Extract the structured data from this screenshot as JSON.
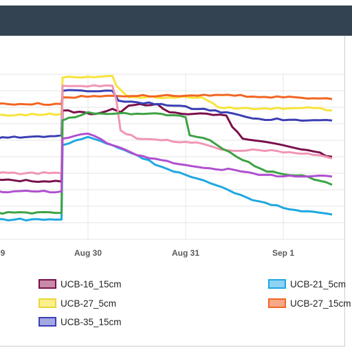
{
  "chart_data": {
    "type": "line",
    "title": "",
    "xlabel": "",
    "ylabel": "",
    "x_ticks": [
      "9",
      "Aug 30",
      "Aug 31",
      "Sep 1"
    ],
    "x_range": [
      "Aug 29 00:00",
      "Sep 1 12:00"
    ],
    "y_range": [
      0,
      10
    ],
    "grid": true,
    "series": [
      {
        "name": "UCB-16_15cm",
        "color": "#7a0f4a",
        "swatch": "#c98aa8",
        "points": [
          [
            "Aug 29 00:00",
            3.6
          ],
          [
            "Aug 29 17:30",
            3.5
          ],
          [
            "Aug 29 17:45",
            7.8
          ],
          [
            "Aug 30 02:00",
            7.6
          ],
          [
            "Aug 30 06:00",
            7.9
          ],
          [
            "Aug 30 08:00",
            7.7
          ],
          [
            "Aug 30 10:00",
            8.1
          ],
          [
            "Aug 30 17:00",
            8.2
          ],
          [
            "Aug 30 20:00",
            7.7
          ],
          [
            "Aug 31 02:00",
            7.6
          ],
          [
            "Aug 31 10:00",
            7.5
          ],
          [
            "Aug 31 11:30",
            6.8
          ],
          [
            "Aug 31 14:00",
            6.1
          ],
          [
            "Aug 31 22:00",
            5.8
          ],
          [
            "Sep 1 06:00",
            5.4
          ],
          [
            "Sep 1 12:00",
            5.0
          ]
        ]
      },
      {
        "name": "UCB-21_5cm",
        "color": "#1ea7e1",
        "swatch": "#8fd3f4",
        "points": [
          [
            "Aug 29 00:00",
            1.2
          ],
          [
            "Aug 29 17:30",
            1.2
          ],
          [
            "Aug 29 17:45",
            5.7
          ],
          [
            "Aug 30 00:00",
            6.2
          ],
          [
            "Aug 30 06:00",
            5.7
          ],
          [
            "Aug 30 12:00",
            5.1
          ],
          [
            "Aug 30 18:00",
            4.4
          ],
          [
            "Aug 31 00:00",
            3.9
          ],
          [
            "Aug 31 06:00",
            3.4
          ],
          [
            "Aug 31 12:00",
            2.8
          ],
          [
            "Aug 31 18:00",
            2.3
          ],
          [
            "Sep 1 00:00",
            1.9
          ],
          [
            "Sep 1 06:00",
            1.7
          ],
          [
            "Sep 1 12:00",
            1.5
          ]
        ]
      },
      {
        "name": "UCB-27_5cm",
        "color": "#f7e43b",
        "swatch": "#fbf08c",
        "points": [
          [
            "Aug 29 00:00",
            7.5
          ],
          [
            "Aug 29 17:30",
            7.6
          ],
          [
            "Aug 29 17:45",
            9.8
          ],
          [
            "Aug 30 06:00",
            9.9
          ],
          [
            "Aug 30 07:00",
            9.3
          ],
          [
            "Aug 30 10:00",
            8.6
          ],
          [
            "Aug 30 20:00",
            8.6
          ],
          [
            "Aug 31 04:00",
            8.6
          ],
          [
            "Aug 31 08:00",
            8.0
          ],
          [
            "Aug 31 18:00",
            7.9
          ],
          [
            "Sep 1 06:00",
            8.0
          ],
          [
            "Sep 1 12:00",
            7.8
          ]
        ]
      },
      {
        "name": "UCB-27_15cm",
        "color": "#f26522",
        "swatch": "#f7a889",
        "points": [
          [
            "Aug 29 00:00",
            8.2
          ],
          [
            "Aug 29 17:30",
            8.2
          ],
          [
            "Aug 29 17:45",
            8.6
          ],
          [
            "Aug 30 06:00",
            8.7
          ],
          [
            "Aug 30 18:00",
            8.7
          ],
          [
            "Aug 31 00:00",
            8.7
          ],
          [
            "Aug 31 12:00",
            8.7
          ],
          [
            "Sep 1 00:00",
            8.6
          ],
          [
            "Sep 1 12:00",
            8.5
          ]
        ]
      },
      {
        "name": "UCB-35_15cm",
        "color": "#3b3fb3",
        "swatch": "#a3a8e3",
        "points": [
          [
            "Aug 29 00:00",
            6.1
          ],
          [
            "Aug 29 17:30",
            6.3
          ],
          [
            "Aug 29 17:45",
            9.0
          ],
          [
            "Aug 30 06:00",
            9.0
          ],
          [
            "Aug 30 07:30",
            8.4
          ],
          [
            "Aug 30 18:00",
            8.2
          ],
          [
            "Aug 31 06:00",
            7.8
          ],
          [
            "Aug 31 10:00",
            7.7
          ],
          [
            "Aug 31 18:00",
            7.3
          ],
          [
            "Sep 1 06:00",
            7.2
          ],
          [
            "Sep 1 12:00",
            7.2
          ]
        ]
      },
      {
        "name": "",
        "color": "#f195b4",
        "points": [
          [
            "Aug 29 00:00",
            4.0
          ],
          [
            "Aug 29 17:30",
            4.0
          ],
          [
            "Aug 29 17:45",
            9.3
          ],
          [
            "Aug 30 06:00",
            9.3
          ],
          [
            "Aug 30 07:00",
            8.4
          ],
          [
            "Aug 30 08:00",
            6.6
          ],
          [
            "Aug 30 12:00",
            6.1
          ],
          [
            "Aug 30 18:00",
            6.0
          ],
          [
            "Aug 31 00:00",
            5.9
          ],
          [
            "Aug 31 04:00",
            5.8
          ],
          [
            "Aug 31 10:00",
            5.4
          ],
          [
            "Aug 31 18:00",
            5.4
          ],
          [
            "Sep 1 06:00",
            5.2
          ],
          [
            "Sep 1 12:00",
            4.9
          ]
        ]
      },
      {
        "name": "",
        "color": "#3ca244",
        "points": [
          [
            "Aug 29 00:00",
            1.6
          ],
          [
            "Aug 29 17:30",
            1.6
          ],
          [
            "Aug 29 17:45",
            7.2
          ],
          [
            "Aug 30 00:00",
            7.7
          ],
          [
            "Aug 30 06:00",
            7.6
          ],
          [
            "Aug 30 18:00",
            7.6
          ],
          [
            "Aug 31 00:00",
            7.4
          ],
          [
            "Aug 31 01:00",
            6.3
          ],
          [
            "Aug 31 06:00",
            6.0
          ],
          [
            "Aug 31 14:00",
            4.8
          ],
          [
            "Aug 31 20:00",
            4.1
          ],
          [
            "Sep 1 06:00",
            3.8
          ],
          [
            "Sep 1 12:00",
            3.3
          ]
        ]
      },
      {
        "name": "",
        "color": "#b04fd0",
        "points": [
          [
            "Aug 29 00:00",
            2.9
          ],
          [
            "Aug 29 17:30",
            2.9
          ],
          [
            "Aug 29 17:45",
            6.1
          ],
          [
            "Aug 30 00:00",
            6.4
          ],
          [
            "Aug 30 06:00",
            5.7
          ],
          [
            "Aug 30 12:00",
            5.1
          ],
          [
            "Aug 30 18:00",
            4.8
          ],
          [
            "Aug 31 00:00",
            4.5
          ],
          [
            "Aug 31 06:00",
            4.3
          ],
          [
            "Aug 31 12:00",
            4.2
          ],
          [
            "Aug 31 18:00",
            3.9
          ],
          [
            "Sep 1 06:00",
            3.8
          ],
          [
            "Sep 1 12:00",
            3.8
          ]
        ]
      }
    ]
  },
  "legend": [
    {
      "label": "UCB-16_15cm",
      "fill": "#c98aa8",
      "border": "#7a0f4a"
    },
    {
      "label": "UCB-21_5cm",
      "fill": "#8fd3f4",
      "border": "#1ea7e1"
    },
    {
      "label": "UCB-27_5cm",
      "fill": "#fbf08c",
      "border": "#e9d63a"
    },
    {
      "label": "UCB-27_15cm",
      "fill": "#f7a889",
      "border": "#f26522"
    },
    {
      "label": "UCB-35_15cm",
      "fill": "#a3a8e3",
      "border": "#3b3fb3"
    }
  ],
  "colors": {
    "titlebar": "#344351",
    "grid": "#e6e6e6",
    "border": "#c9ccd1"
  }
}
